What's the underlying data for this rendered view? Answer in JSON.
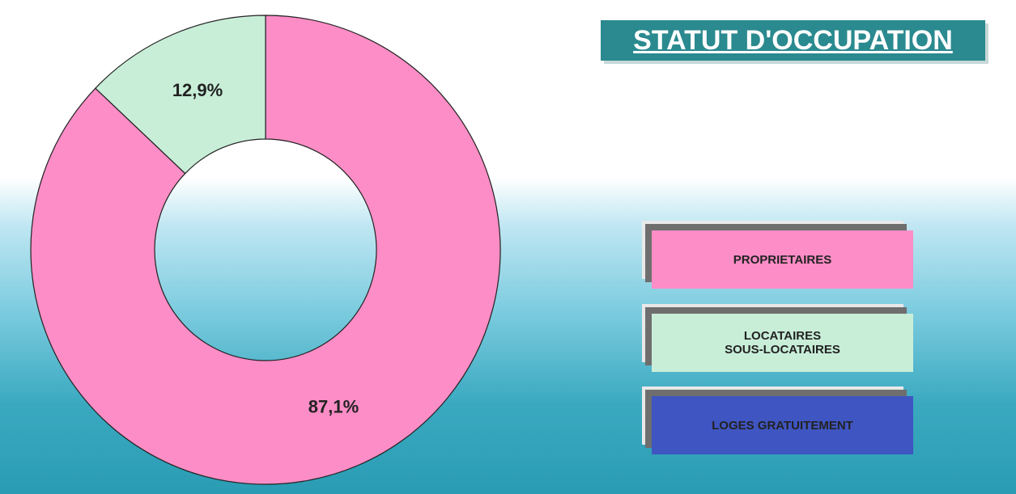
{
  "chart_data": {
    "type": "donut",
    "title": "STATUT D'OCCUPATION",
    "categories": [
      "PROPRIETAIRES",
      "LOCATAIRES\nSOUS-LOCATAIRES",
      "LOGES GRATUITEMENT"
    ],
    "values": [
      87.1,
      12.9,
      0
    ],
    "value_labels": [
      "87,1%",
      "12,9%",
      null
    ],
    "colors": [
      "#fc8dc6",
      "#c8eed8",
      "#3f55c2"
    ],
    "legend": "right"
  }
}
